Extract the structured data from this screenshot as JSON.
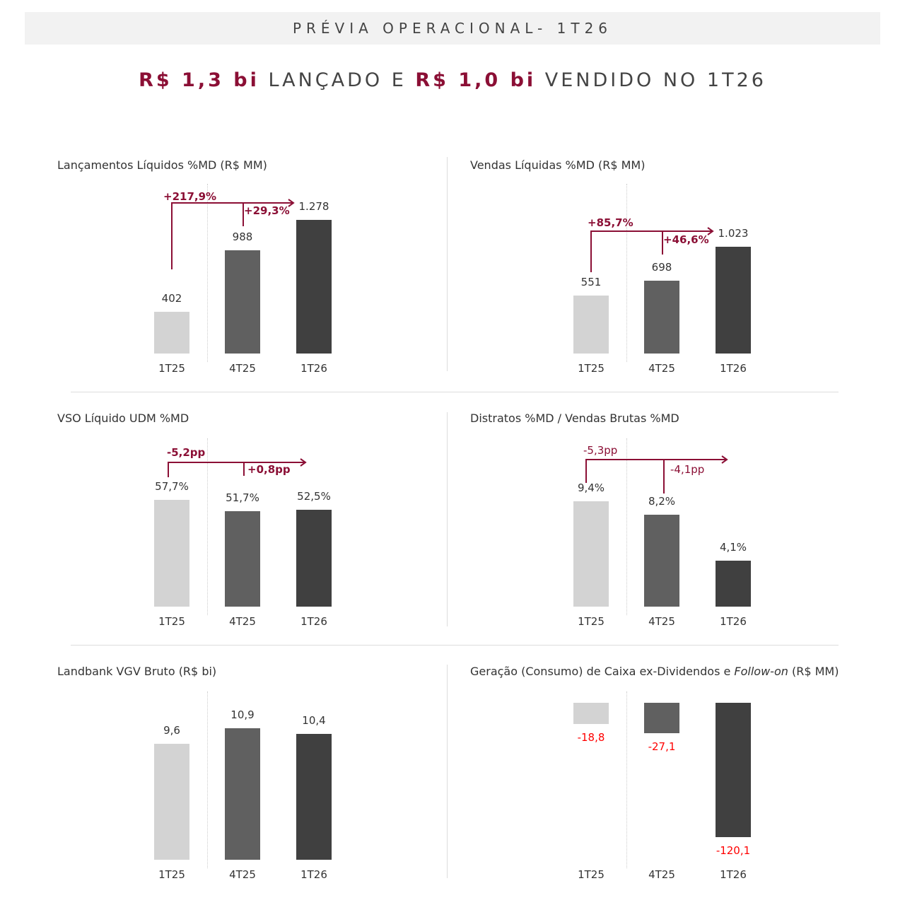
{
  "banner": "PRÉVIA OPERACIONAL- 1T26",
  "headline": {
    "part1": "R$ 1,3 bi",
    "part2": " LANÇADO E ",
    "part3": "R$ 1,0 bi",
    "part4": " VENDIDO NO 1T26"
  },
  "colors": {
    "accent": "#8b0f35",
    "bars": [
      "#d3d3d3",
      "#606060",
      "#404040"
    ],
    "negative": "#ff0000"
  },
  "chart_data": [
    {
      "type": "bar",
      "title": "Lançamentos Líquidos %MD (R$ MM)",
      "categories": [
        "1T25",
        "4T25",
        "1T26"
      ],
      "values": [
        402,
        988,
        1278
      ],
      "labels": [
        "402",
        "988",
        "1.278"
      ],
      "annotations": [
        "+217,9%",
        "+29,3%"
      ]
    },
    {
      "type": "bar",
      "title": "Vendas Líquidas %MD (R$ MM)",
      "categories": [
        "1T25",
        "4T25",
        "1T26"
      ],
      "values": [
        551,
        698,
        1023
      ],
      "labels": [
        "551",
        "698",
        "1.023"
      ],
      "annotations": [
        "+85,7%",
        "+46,6%"
      ]
    },
    {
      "type": "bar",
      "title": "VSO Líquido UDM %MD",
      "categories": [
        "1T25",
        "4T25",
        "1T26"
      ],
      "values": [
        57.7,
        51.7,
        52.5
      ],
      "labels": [
        "57,7%",
        "51,7%",
        "52,5%"
      ],
      "annotations": [
        "-5,2pp",
        "+0,8pp"
      ]
    },
    {
      "type": "bar",
      "title": "Distratos %MD / Vendas Brutas %MD",
      "categories": [
        "1T25",
        "4T25",
        "1T26"
      ],
      "values": [
        9.4,
        8.2,
        4.1
      ],
      "labels": [
        "9,4%",
        "8,2%",
        "4,1%"
      ],
      "annotations": [
        "-5,3pp",
        "-4,1pp"
      ]
    },
    {
      "type": "bar",
      "title": "Landbank VGV Bruto (R$ bi)",
      "categories": [
        "1T25",
        "4T25",
        "1T26"
      ],
      "values": [
        9.6,
        10.9,
        10.4
      ],
      "labels": [
        "9,6",
        "10,9",
        "10,4"
      ],
      "annotations": []
    },
    {
      "type": "bar",
      "title_parts": [
        "Geração (Consumo) de Caixa ex-Dividendos e ",
        "Follow-on",
        " (R$ MM)"
      ],
      "categories": [
        "1T25",
        "4T25",
        "1T26"
      ],
      "values": [
        -18.8,
        -27.1,
        -120.1
      ],
      "labels": [
        "-18,8",
        "-27,1",
        "-120,1"
      ],
      "annotations": []
    }
  ]
}
